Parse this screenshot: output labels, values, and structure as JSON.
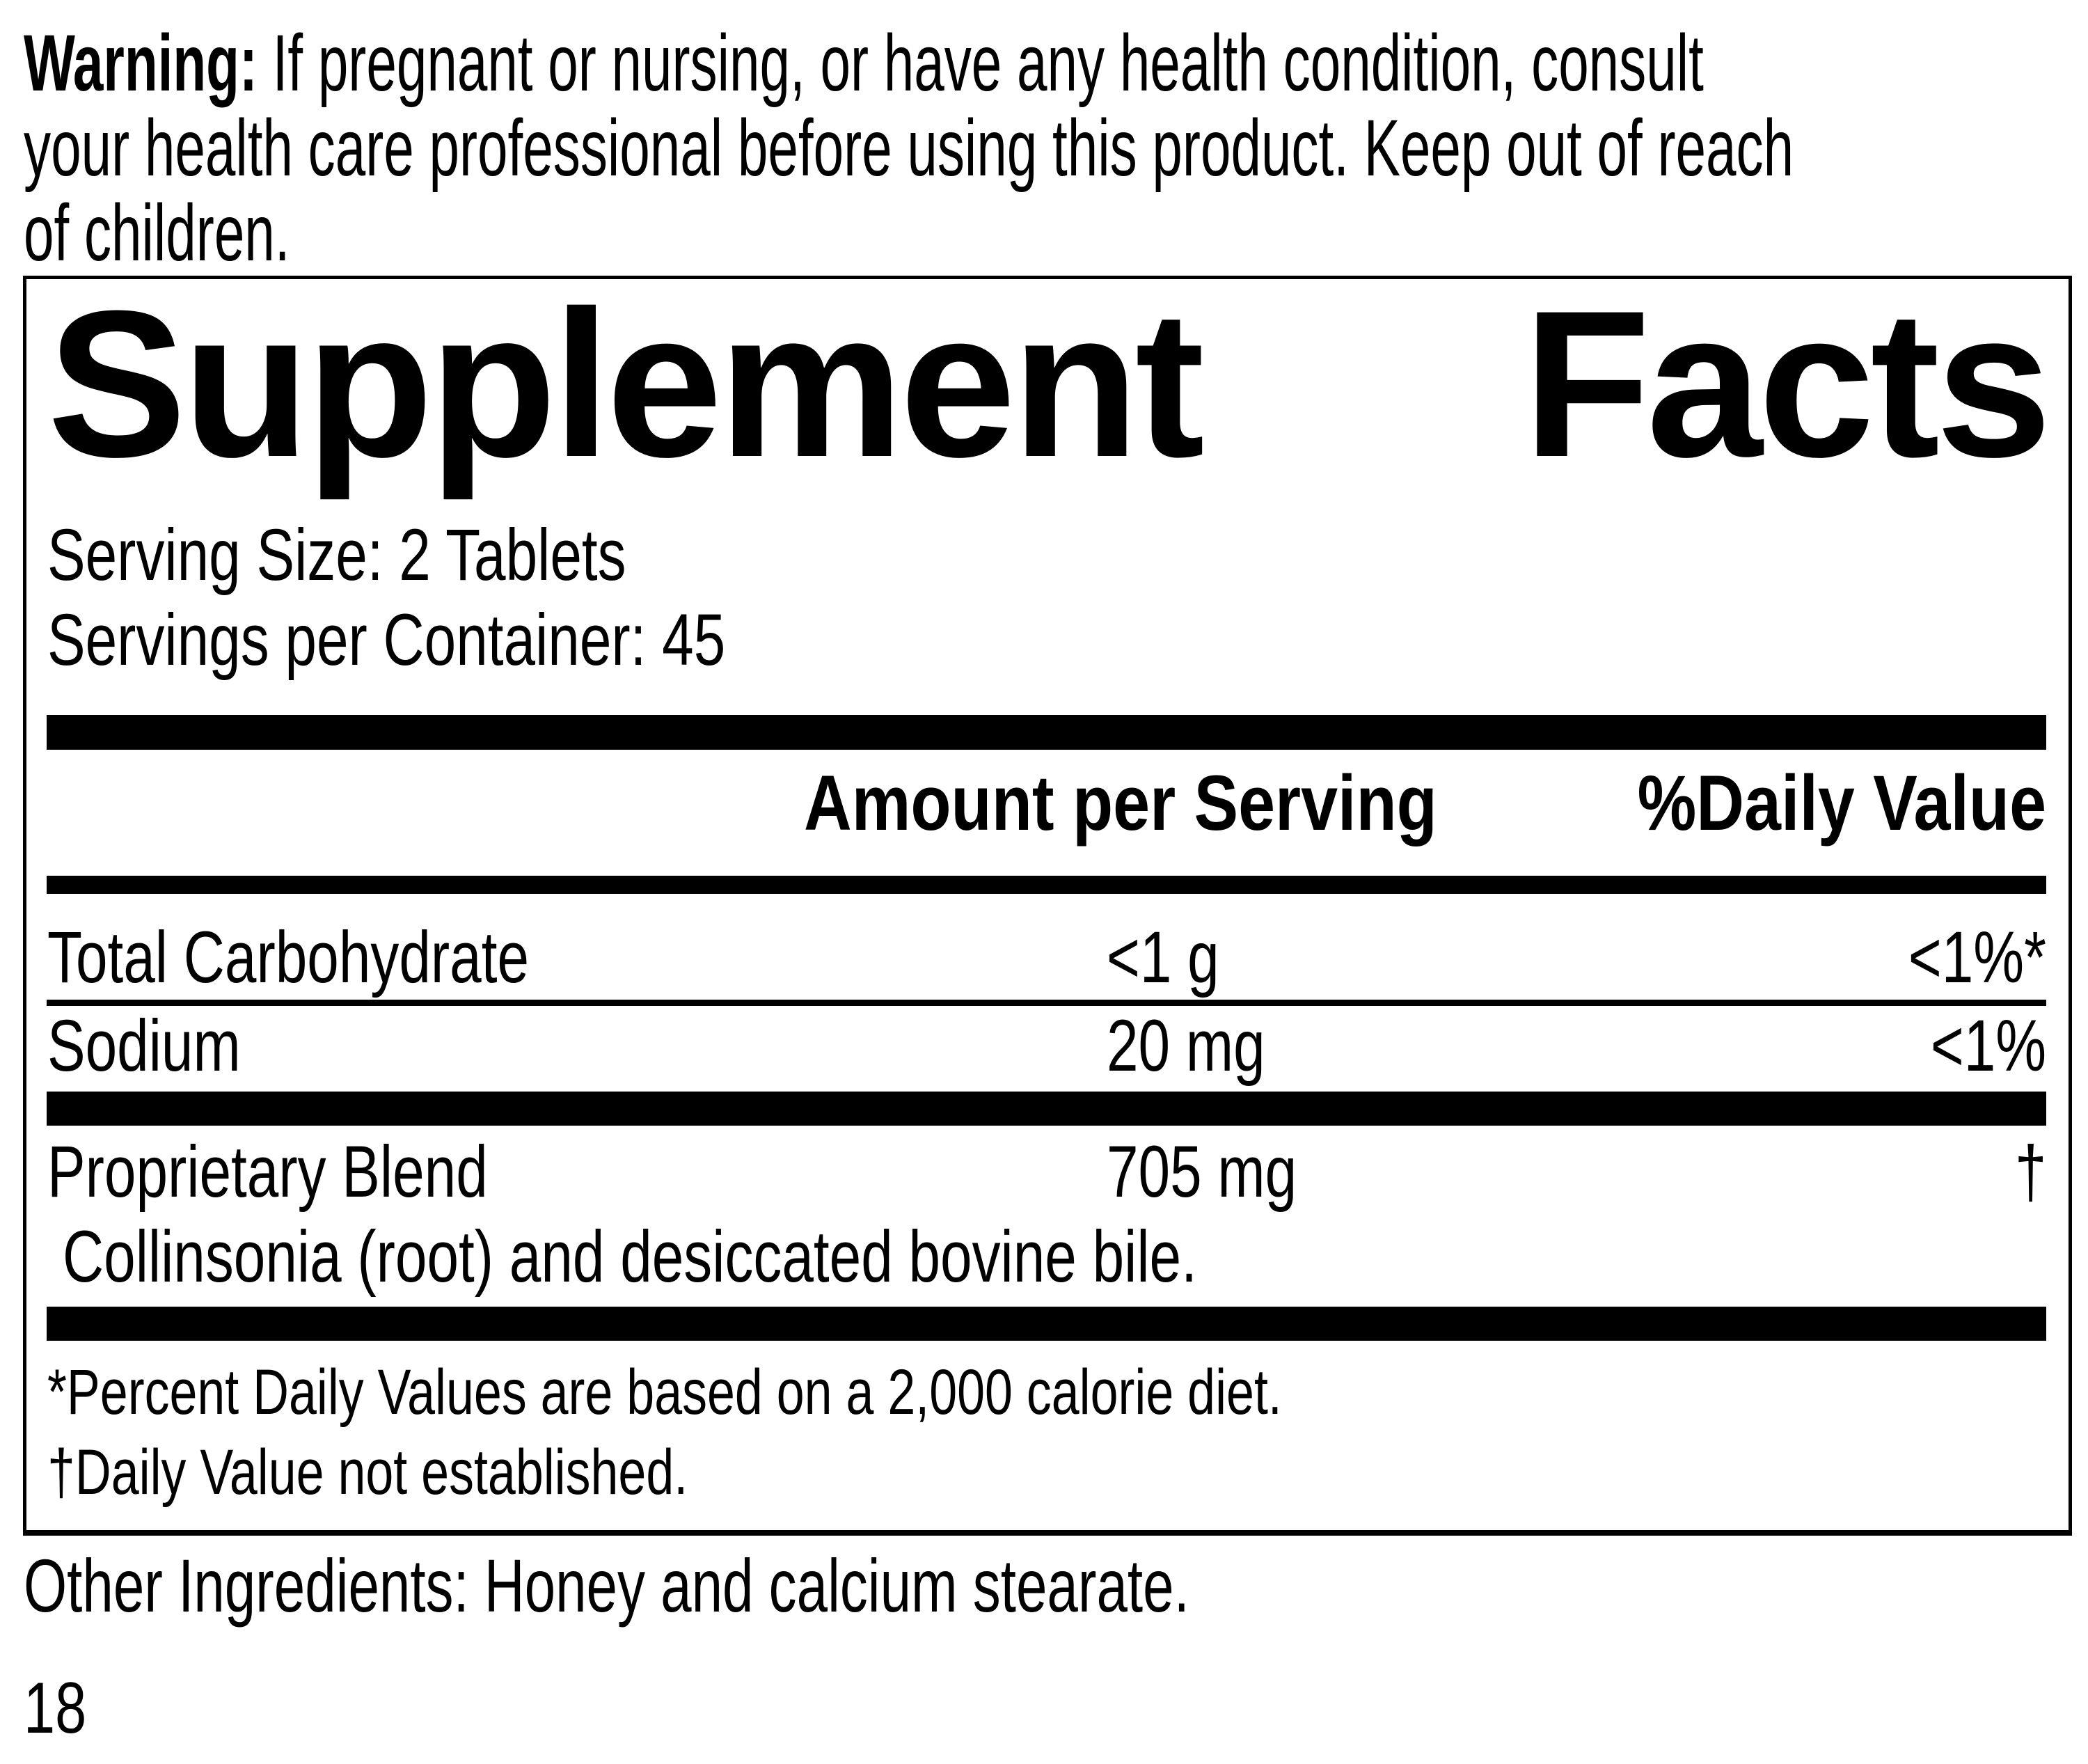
{
  "warning": {
    "label": "Warning:",
    "line1_rest": "If pregnant or nursing, or have any health condition, consult",
    "line2": "your health care professional before using this product. Keep out of reach",
    "line3": "of children."
  },
  "panel": {
    "title": {
      "word1": "Supplement",
      "word2": "Facts"
    },
    "serving_size": "Serving Size: 2 Tablets",
    "servings_per_container": "Servings per Container: 45",
    "header": {
      "amount": "Amount per Serving",
      "daily_value": "%Daily Value"
    },
    "rows": [
      {
        "name": "Total Carbohydrate",
        "amount": "<1 g",
        "dv": "<1%*"
      },
      {
        "name": "Sodium",
        "amount": "20 mg",
        "dv": "<1%"
      },
      {
        "name": "Proprietary Blend",
        "amount": "705 mg",
        "dv": "†"
      }
    ],
    "blend_detail": "Collinsonia (root) and desiccated bovine bile.",
    "footnotes": {
      "asterisk": "*Percent Daily Values are based on a 2,000 calorie diet.",
      "dagger": "†Daily Value not established."
    }
  },
  "other_ingredients": "Other Ingredients: Honey and calcium stearate.",
  "page_number": "18",
  "colors": {
    "ink": "#000000",
    "paper": "#ffffff"
  }
}
